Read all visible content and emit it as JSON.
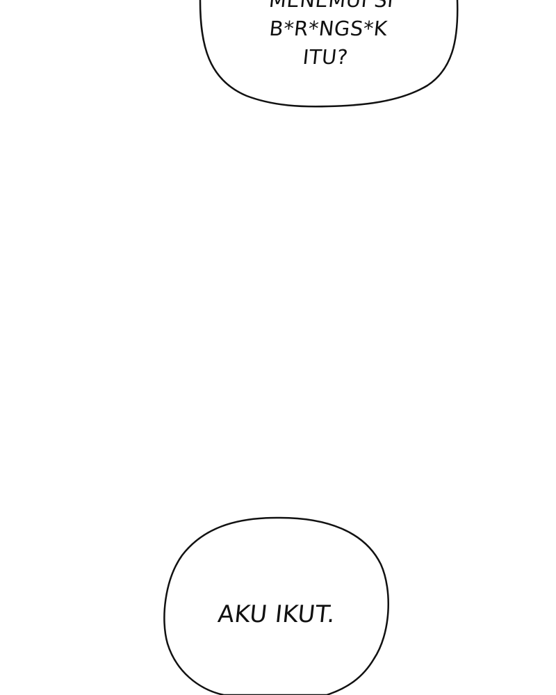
{
  "panel": {
    "background_color": "#ffffff",
    "bubble_stroke_color": "#111111"
  },
  "speech_bubble_top": {
    "lines": [
      "MENEMUI SI",
      "B*R*NGS*K",
      "ITU?"
    ]
  },
  "speech_bubble_bottom": {
    "text": "AKU IKUT."
  }
}
